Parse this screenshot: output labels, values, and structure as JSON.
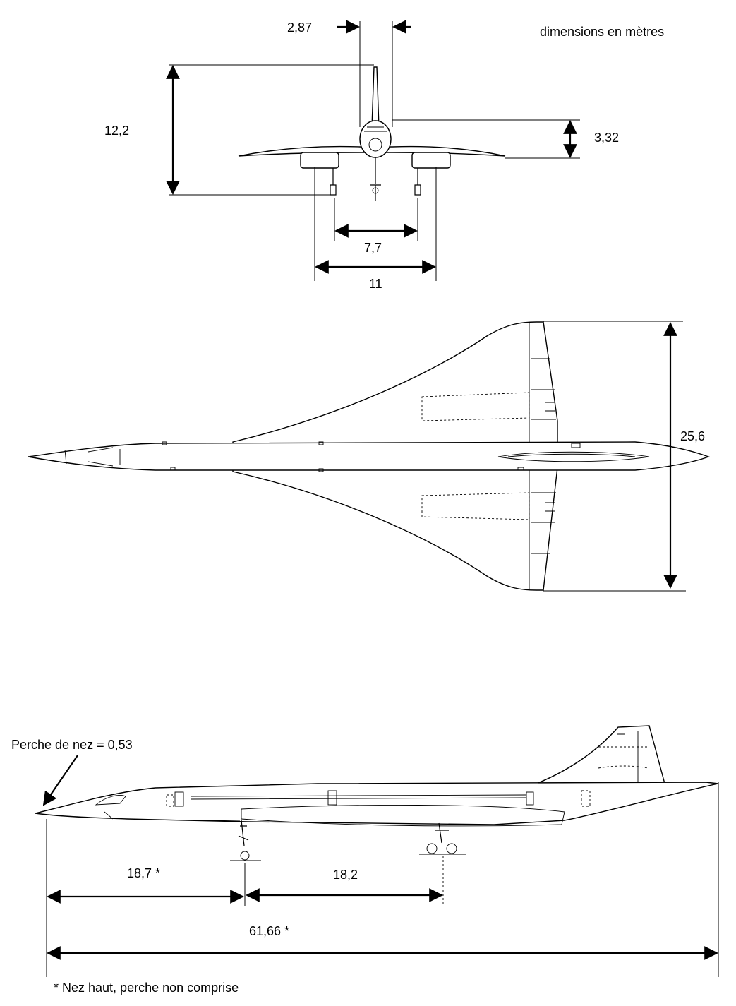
{
  "units_note": "dimensions en mètres",
  "front_view": {
    "fin_width": "2,87",
    "height": "12,2",
    "fuselage_height": "3,32",
    "main_gear_track": "7,7",
    "engine_span": "11"
  },
  "top_view": {
    "wingspan": "25,6"
  },
  "side_view": {
    "nose_probe": "Perche de nez = 0,53",
    "nose_to_main_gear": "18,7 *",
    "wheelbase": "18,2",
    "overall_length": "61,66 *"
  },
  "footnote": "* Nez haut, perche non comprise"
}
